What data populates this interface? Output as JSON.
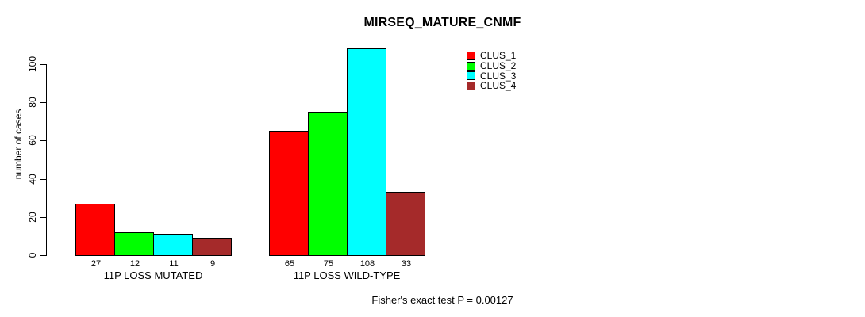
{
  "chart_data": {
    "type": "bar",
    "title": "MIRSEQ_MATURE_CNMF",
    "ylabel": "number of cases",
    "xlabel": "",
    "ylim": [
      0,
      108
    ],
    "yticks": [
      0,
      20,
      40,
      60,
      80,
      100
    ],
    "categories": [
      "11P LOSS MUTATED",
      "11P LOSS WILD-TYPE"
    ],
    "series": [
      {
        "name": "CLUS_1",
        "color": "#ff0000",
        "values": [
          27,
          65
        ]
      },
      {
        "name": "CLUS_2",
        "color": "#00ff00",
        "values": [
          12,
          75
        ]
      },
      {
        "name": "CLUS_3",
        "color": "#00ffff",
        "values": [
          11,
          108
        ]
      },
      {
        "name": "CLUS_4",
        "color": "#a52a2a",
        "values": [
          9,
          33
        ]
      }
    ],
    "bar_value_labels": [
      [
        27,
        12,
        11,
        9
      ],
      [
        65,
        75,
        108,
        33
      ]
    ],
    "legend_position": "top-right",
    "grid": false,
    "annotation": "Fisher's exact test P = 0.00127"
  }
}
